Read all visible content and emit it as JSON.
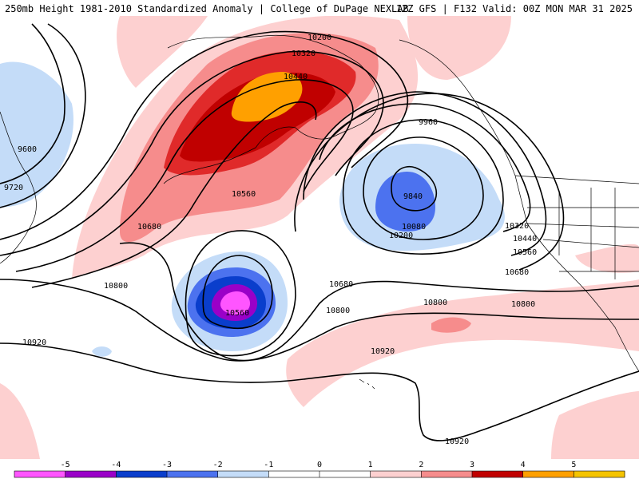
{
  "header": {
    "left_title": "250mb Height 1981-2010 Standardized Anomaly | College of DuPage NEXLAB",
    "right_title": "12Z GFS | F132 Valid: 00Z MON MAR 31 2025"
  },
  "map": {
    "contour_labels": [
      "10200",
      "10320",
      "10440",
      "9960",
      "9600",
      "9720",
      "9840",
      "10080",
      "10200",
      "10560",
      "10680",
      "10320",
      "10440",
      "10560",
      "10680",
      "10800",
      "10680",
      "10800",
      "10560",
      "10800",
      "10920",
      "10920",
      "10920",
      "10800"
    ],
    "shading_colors": {
      "neg5": "#ff55ff",
      "neg4": "#9a00c8",
      "neg3": "#0a3ecc",
      "neg2": "#4c72ef",
      "neg1": "#c4dcf8",
      "pos1": "#fdd0d0",
      "pos2": "#f68c8c",
      "pos3": "#e02a2a",
      "pos4": "#c00000",
      "pos5": "#ffa000"
    }
  },
  "colorbar": {
    "ticks": [
      "-5",
      "-4",
      "-3",
      "-2",
      "-1",
      "0",
      "1",
      "2",
      "3",
      "4",
      "5"
    ],
    "colors": [
      "#ff55ff",
      "#9a00c8",
      "#0a3ecc",
      "#4c72ef",
      "#c4dcf8",
      "#ffffff",
      "#ffffff",
      "#fdd0d0",
      "#f68c8c",
      "#c00000",
      "#ffa000",
      "#f5c400"
    ]
  }
}
